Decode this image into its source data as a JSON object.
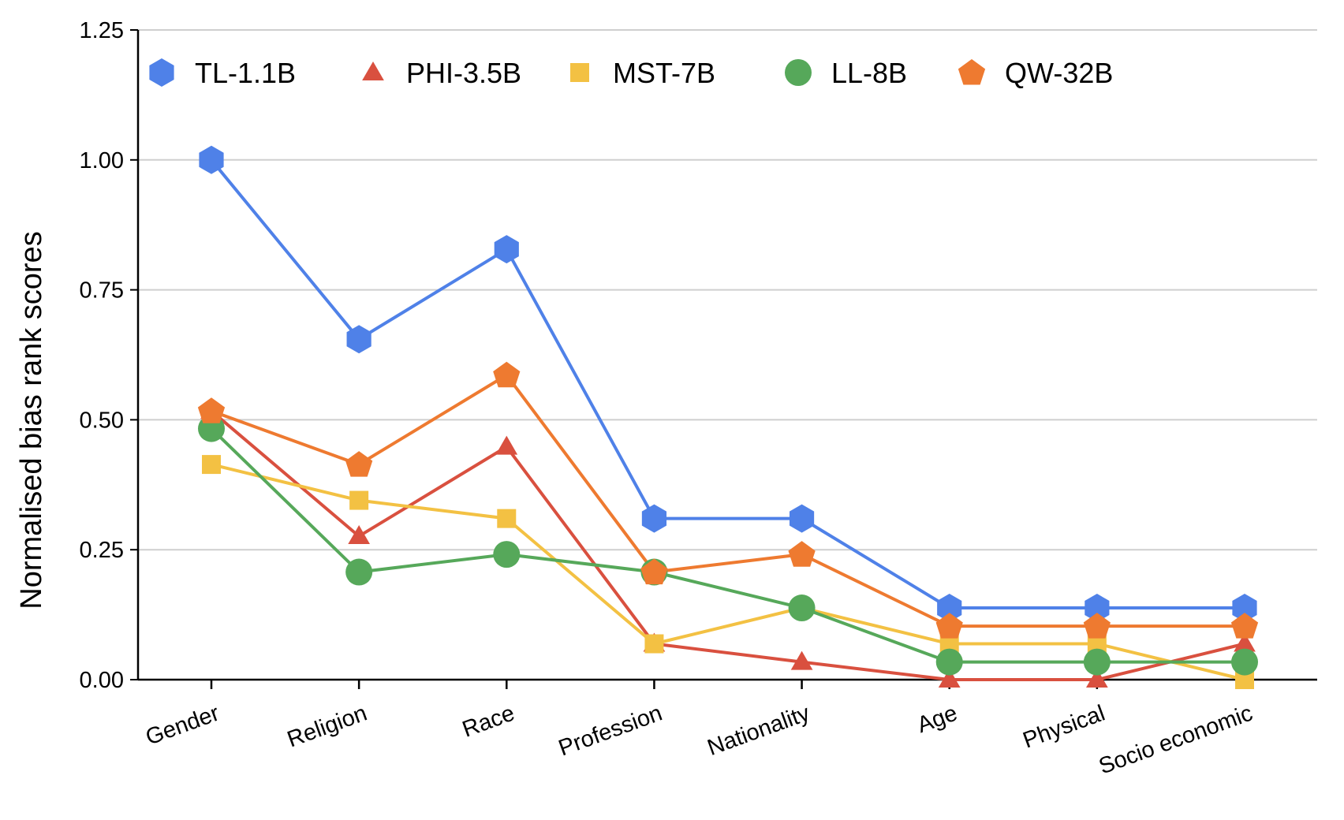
{
  "chart_data": {
    "type": "line",
    "title": "",
    "xlabel": "",
    "ylabel": "Normalised bias rank scores",
    "ylim": [
      0,
      1.25
    ],
    "yticks": [
      "0.00",
      "0.25",
      "0.50",
      "0.75",
      "1.00",
      "1.25"
    ],
    "ytick_values": [
      0,
      0.25,
      0.5,
      0.75,
      1.0,
      1.25
    ],
    "grid": true,
    "legend_position": "top",
    "categories": [
      "Gender",
      "Religion",
      "Race",
      "Profession",
      "Nationality",
      "Age",
      "Physical",
      "Socio economic"
    ],
    "series": [
      {
        "name": "TL-1.1B",
        "color": "#4f81e8",
        "marker": "hexagon",
        "values": [
          1.0,
          0.655,
          0.828,
          0.31,
          0.31,
          0.138,
          0.138,
          0.138
        ]
      },
      {
        "name": "PHI-3.5B",
        "color": "#d9503f",
        "marker": "triangle",
        "values": [
          0.517,
          0.276,
          0.448,
          0.069,
          0.034,
          0.0,
          0.0,
          0.069
        ]
      },
      {
        "name": "MST-7B",
        "color": "#f3c143",
        "marker": "square",
        "values": [
          0.414,
          0.345,
          0.31,
          0.069,
          0.138,
          0.069,
          0.069,
          0.0
        ]
      },
      {
        "name": "LL-8B",
        "color": "#56a85a",
        "marker": "circle",
        "values": [
          0.483,
          0.207,
          0.241,
          0.207,
          0.138,
          0.034,
          0.034,
          0.034
        ]
      },
      {
        "name": "QW-32B",
        "color": "#ee7a30",
        "marker": "pentagon",
        "values": [
          0.517,
          0.414,
          0.586,
          0.207,
          0.241,
          0.103,
          0.103,
          0.103
        ]
      }
    ]
  }
}
